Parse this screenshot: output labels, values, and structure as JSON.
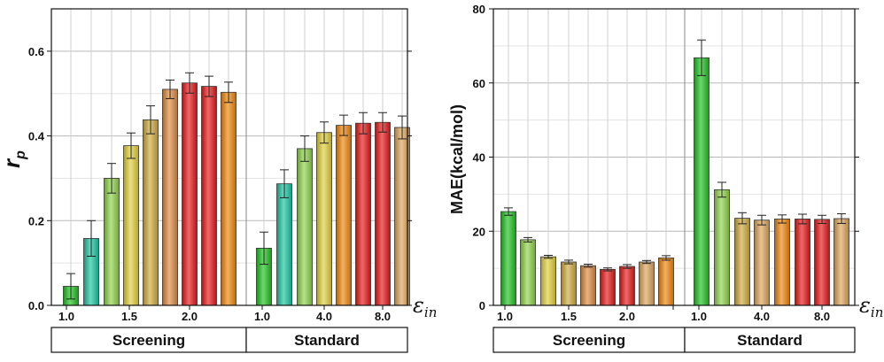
{
  "colors": {
    "dark_green": "#1fc21f",
    "teal": "#19c6a0",
    "yellow_green": "#8fd24a",
    "yellow": "#e2d03a",
    "olive": "#cfaa3e",
    "light_brown": "#dd8a3e",
    "red": "#e61818",
    "orange": "#f0860c",
    "tan": "#dda45a"
  },
  "chart_data": [
    {
      "type": "bar",
      "ylabel_main": "r",
      "ylabel_sub": "p",
      "xlabel_main": "ε",
      "xlabel_sub": "in",
      "ylim": [
        0,
        0.7
      ],
      "yticks": [
        0.0,
        0.2,
        0.4,
        0.6
      ],
      "ytick_labels": [
        "0.0",
        "0.2",
        "0.4",
        "0.6"
      ],
      "grid": true,
      "groups": [
        {
          "label": "Screening",
          "tick_labels": [
            {
              "index": 0,
              "text": "1.0"
            },
            {
              "index": 4,
              "text": "1.5"
            },
            {
              "index": 7,
              "text": "2.0"
            }
          ],
          "bars": [
            {
              "value": 0.045,
              "error": 0.03,
              "color": "dark_green"
            },
            {
              "value": 0.158,
              "error": 0.042,
              "color": "teal"
            },
            {
              "value": 0.3,
              "error": 0.035,
              "color": "yellow_green"
            },
            {
              "value": 0.377,
              "error": 0.03,
              "color": "yellow"
            },
            {
              "value": 0.438,
              "error": 0.033,
              "color": "olive"
            },
            {
              "value": 0.51,
              "error": 0.022,
              "color": "light_brown"
            },
            {
              "value": 0.525,
              "error": 0.024,
              "color": "red"
            },
            {
              "value": 0.517,
              "error": 0.024,
              "color": "red"
            },
            {
              "value": 0.503,
              "error": 0.024,
              "color": "orange"
            }
          ]
        },
        {
          "label": "Standard",
          "tick_labels": [
            {
              "index": 0,
              "text": "1.0"
            },
            {
              "index": 3,
              "text": "4.0"
            },
            {
              "index": 7,
              "text": "8.0"
            }
          ],
          "bars": [
            {
              "value": 0.135,
              "error": 0.038,
              "color": "dark_green"
            },
            {
              "value": 0.287,
              "error": 0.033,
              "color": "teal"
            },
            {
              "value": 0.37,
              "error": 0.03,
              "color": "yellow_green"
            },
            {
              "value": 0.408,
              "error": 0.025,
              "color": "yellow"
            },
            {
              "value": 0.425,
              "error": 0.024,
              "color": "orange"
            },
            {
              "value": 0.43,
              "error": 0.025,
              "color": "red"
            },
            {
              "value": 0.432,
              "error": 0.023,
              "color": "red"
            },
            {
              "value": 0.42,
              "error": 0.027,
              "color": "tan"
            }
          ]
        }
      ]
    },
    {
      "type": "bar",
      "ylabel": "MAE(kcal/mol)",
      "xlabel_main": "ε",
      "xlabel_sub": "in",
      "ylim": [
        0,
        80
      ],
      "yticks": [
        0,
        20,
        40,
        60,
        80
      ],
      "ytick_labels": [
        "0",
        "20",
        "40",
        "60",
        "80"
      ],
      "grid": true,
      "groups": [
        {
          "label": "Screening",
          "tick_labels": [
            {
              "index": 0,
              "text": "1.0"
            },
            {
              "index": 4,
              "text": "1.5"
            },
            {
              "index": 7,
              "text": "2.0"
            },
            {
              "index": 9,
              "text": ""
            }
          ],
          "bars": [
            {
              "value": 25.3,
              "error": 1.0,
              "color": "dark_green"
            },
            {
              "value": 17.7,
              "error": 0.6,
              "color": "yellow_green"
            },
            {
              "value": 13.1,
              "error": 0.4,
              "color": "yellow"
            },
            {
              "value": 11.7,
              "error": 0.5,
              "color": "olive"
            },
            {
              "value": 10.7,
              "error": 0.4,
              "color": "light_brown"
            },
            {
              "value": 9.7,
              "error": 0.4,
              "color": "red"
            },
            {
              "value": 10.5,
              "error": 0.5,
              "color": "red"
            },
            {
              "value": 11.7,
              "error": 0.4,
              "color": "tan"
            },
            {
              "value": 12.8,
              "error": 0.6,
              "color": "orange"
            }
          ]
        },
        {
          "label": "Standard",
          "tick_labels": [
            {
              "index": 0,
              "text": "1.0"
            },
            {
              "index": 3,
              "text": "4.0"
            },
            {
              "index": 7,
              "text": "8.0"
            }
          ],
          "bars": [
            {
              "value": 66.8,
              "error": 4.8,
              "color": "dark_green"
            },
            {
              "value": 31.2,
              "error": 2.0,
              "color": "yellow_green"
            },
            {
              "value": 23.5,
              "error": 1.5,
              "color": "olive"
            },
            {
              "value": 23.0,
              "error": 1.3,
              "color": "tan"
            },
            {
              "value": 23.3,
              "error": 1.1,
              "color": "orange"
            },
            {
              "value": 23.3,
              "error": 1.3,
              "color": "red"
            },
            {
              "value": 23.2,
              "error": 1.1,
              "color": "red"
            },
            {
              "value": 23.4,
              "error": 1.3,
              "color": "tan"
            }
          ]
        }
      ]
    }
  ]
}
